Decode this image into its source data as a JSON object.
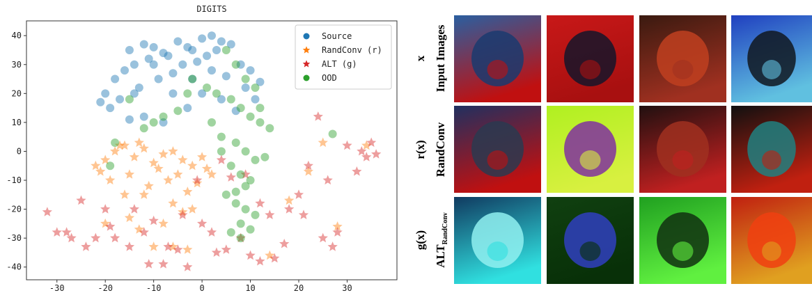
{
  "chart_data": {
    "type": "scatter",
    "title": "DIGITS",
    "xlim": [
      -36.3,
      40.3
    ],
    "ylim": [
      -44.4,
      45.1
    ],
    "xticks": [
      -30,
      -20,
      -10,
      0,
      10,
      20,
      30
    ],
    "yticks": [
      -40,
      -30,
      -20,
      -10,
      0,
      10,
      20,
      30,
      40
    ],
    "grid": false,
    "legend": "upper right",
    "series": [
      {
        "name": "Source",
        "color": "#1f77b4",
        "marker": "circle",
        "x": [
          -15,
          -12,
          -10,
          -8,
          -5,
          -3,
          0,
          2,
          4,
          6,
          -18,
          -20,
          -16,
          -14,
          -11,
          -7,
          -2,
          3,
          8,
          10,
          12,
          -13,
          -9,
          -6,
          -4,
          -1,
          1,
          5,
          9,
          -19,
          -17,
          -12,
          -8,
          -3,
          0,
          4,
          7,
          -10,
          -6,
          -14,
          -2,
          2,
          11,
          -21,
          -15
        ],
        "y": [
          35,
          37,
          36,
          34,
          38,
          36,
          39,
          40,
          38,
          37,
          25,
          20,
          28,
          30,
          32,
          33,
          35,
          35,
          30,
          28,
          24,
          22,
          25,
          27,
          30,
          31,
          33,
          26,
          22,
          15,
          18,
          12,
          10,
          15,
          20,
          18,
          14,
          30,
          20,
          20,
          25,
          28,
          18,
          17,
          11
        ]
      },
      {
        "name": "RandConv (r)",
        "color": "#ff7f0e",
        "marker": "star",
        "x": [
          -22,
          -20,
          -18,
          -16,
          -14,
          -12,
          -10,
          -8,
          -6,
          -4,
          -2,
          0,
          2,
          -19,
          -15,
          -11,
          -7,
          -3,
          1,
          -17,
          -13,
          -9,
          -5,
          -1,
          -21,
          -16,
          -12,
          -6,
          -2,
          -15,
          -8,
          -4,
          -10,
          -20,
          -13,
          -6,
          25,
          28,
          34,
          22,
          14,
          18,
          -3
        ],
        "y": [
          -5,
          -3,
          0,
          2,
          -2,
          1,
          -4,
          -1,
          0,
          -3,
          -5,
          -2,
          -8,
          -10,
          -8,
          -12,
          -10,
          -14,
          -6,
          2,
          3,
          -6,
          -8,
          -11,
          -7,
          -15,
          -15,
          -18,
          -20,
          -23,
          -25,
          -21,
          -33,
          -25,
          -27,
          -33,
          3,
          -26,
          2,
          -7,
          -36,
          -17,
          -34
        ]
      },
      {
        "name": "ALT (g)",
        "color": "#d62728",
        "marker": "star",
        "x": [
          -32,
          -30,
          -28,
          -25,
          -22,
          -20,
          -18,
          -15,
          -12,
          -10,
          -8,
          -5,
          -3,
          0,
          3,
          5,
          8,
          10,
          12,
          15,
          18,
          20,
          22,
          24,
          26,
          28,
          30,
          32,
          34,
          36,
          -27,
          -19,
          -14,
          -7,
          -1,
          4,
          9,
          14,
          21,
          27,
          33,
          -24,
          -11,
          2,
          17,
          25,
          35,
          12,
          -4,
          6
        ],
        "y": [
          -21,
          -28,
          -28,
          -17,
          -30,
          -20,
          -30,
          -33,
          -28,
          -24,
          -39,
          -34,
          -40,
          -25,
          -35,
          -34,
          -30,
          -36,
          -18,
          -37,
          -20,
          -15,
          -5,
          12,
          -10,
          -28,
          2,
          -7,
          -2,
          -1,
          -30,
          -26,
          -20,
          -33,
          -10,
          -3,
          -8,
          -22,
          -22,
          -33,
          0,
          -33,
          -39,
          -28,
          -32,
          -30,
          3,
          -38,
          -22,
          -9
        ]
      },
      {
        "name": "OOD",
        "color": "#2ca02c",
        "marker": "circle",
        "x": [
          5,
          7,
          9,
          11,
          3,
          6,
          8,
          10,
          12,
          14,
          4,
          7,
          9,
          13,
          6,
          8,
          10,
          5,
          7,
          9,
          11,
          8,
          6,
          10,
          -5,
          -8,
          -10,
          -12,
          -3,
          1,
          -2,
          -15,
          -18,
          27,
          -19,
          8,
          9,
          7,
          11,
          2,
          12,
          4
        ],
        "y": [
          35,
          30,
          25,
          22,
          20,
          18,
          15,
          12,
          10,
          8,
          5,
          3,
          0,
          -2,
          -5,
          -8,
          -10,
          -15,
          -18,
          -20,
          -22,
          -25,
          -28,
          -27,
          14,
          12,
          10,
          8,
          20,
          22,
          25,
          18,
          3,
          6,
          -5,
          -30,
          -12,
          -14,
          -3,
          10,
          15,
          0
        ]
      }
    ]
  },
  "image_grid": {
    "rows": [
      {
        "symbol": "x",
        "label": "Input Images"
      },
      {
        "symbol": "r(x)",
        "label": "RandConv"
      },
      {
        "symbol": "g(x)",
        "label": "ALT",
        "label_subscript": "RandConv"
      }
    ]
  }
}
